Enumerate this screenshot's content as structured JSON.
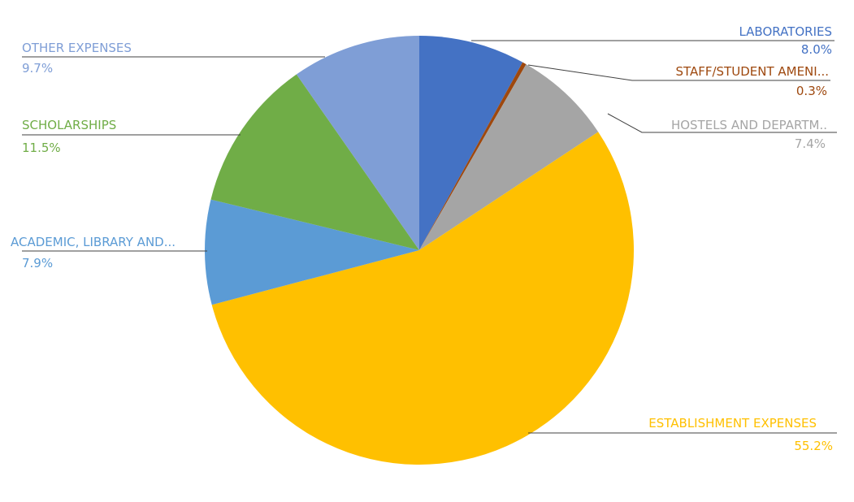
{
  "chart_data": {
    "type": "pie",
    "title": "",
    "start_angle_deg": 0,
    "direction": "clockwise",
    "labels_style": "outside with leader lines",
    "slices": [
      {
        "label": "LABORATORIES",
        "value": 8.0,
        "value_label": "8.0%",
        "color": "#4472C4"
      },
      {
        "label": "STAFF/STUDENT AMENI...",
        "value": 0.3,
        "value_label": "0.3%",
        "color": "#9E480E"
      },
      {
        "label": "HOSTELS AND DEPARTM..",
        "value": 7.4,
        "value_label": "7.4%",
        "color": "#A5A5A5"
      },
      {
        "label": "ESTABLISHMENT EXPENSES",
        "value": 55.2,
        "value_label": "55.2%",
        "color": "#FFC000"
      },
      {
        "label": "ACADEMIC, LIBRARY AND...",
        "value": 7.9,
        "value_label": "7.9%",
        "color": "#5B9BD5"
      },
      {
        "label": "SCHOLARSHIPS",
        "value": 11.5,
        "value_label": "11.5%",
        "color": "#70AD47"
      },
      {
        "label": "OTHER EXPENSES",
        "value": 9.7,
        "value_label": "9.7%",
        "color": "#7F9ED6"
      }
    ]
  }
}
